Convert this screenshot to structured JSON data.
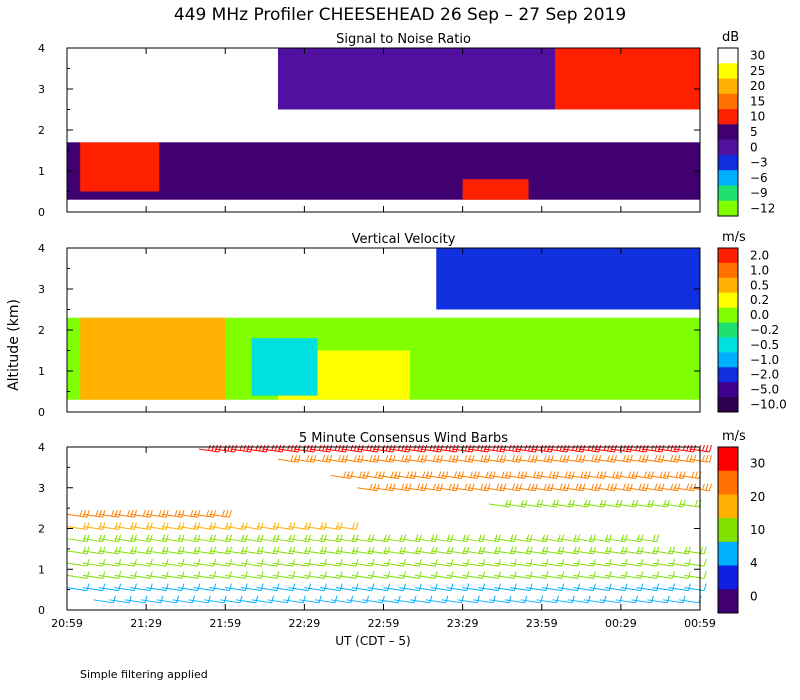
{
  "figure": {
    "title": "449 MHz Profiler CHEESEHEAD 26 Sep – 27 Sep 2019",
    "ylabel": "Altitude (km)",
    "xlabel": "UT  (CDT – 5)",
    "footnote": "Simple filtering applied"
  },
  "chart_data": [
    {
      "type": "heatmap",
      "title": "Signal to Noise Ratio",
      "units": "dB",
      "xlim": [
        0,
        240
      ],
      "ylim": [
        0,
        4
      ],
      "x_tick_labels": [
        "20:59",
        "21:29",
        "21:59",
        "22:29",
        "22:59",
        "23:29",
        "23:59",
        "00:29",
        "00:59"
      ],
      "y_tick_labels": [
        "0",
        "1",
        "2",
        "3",
        "4"
      ],
      "colorbar_labels": [
        "30",
        "25",
        "20",
        "15",
        "10",
        "5",
        "0",
        "−3",
        "−6",
        "−9",
        "−12"
      ],
      "colorbar_colors": [
        "#ffffff",
        "#ffff00",
        "#ffb000",
        "#ff7000",
        "#ff2000",
        "#400070",
        "#5010a0",
        "#1030e0",
        "#00b0ff",
        "#20e070",
        "#80ff00"
      ],
      "regions": [
        {
          "layer": "low-noise",
          "x": [
            0,
            240
          ],
          "y": [
            0.3,
            1.9
          ],
          "color": "#400070"
        },
        {
          "layer": "red-patch",
          "x": [
            5,
            35
          ],
          "y": [
            0.5,
            1.7
          ],
          "color": "#ff2000"
        },
        {
          "layer": "red-patch",
          "x": [
            150,
            175
          ],
          "y": [
            0.3,
            0.8
          ],
          "color": "#ff2000"
        },
        {
          "layer": "bright-layer",
          "x": [
            0,
            240
          ],
          "y": [
            1.7,
            2.4
          ],
          "color": "#ffffff"
        },
        {
          "layer": "upper-clear",
          "x": [
            0,
            80
          ],
          "y": [
            2.2,
            4.0
          ],
          "color": "#ffffff"
        },
        {
          "layer": "upper-noise",
          "x": [
            80,
            240
          ],
          "y": [
            2.5,
            4.0
          ],
          "color": "#5010a0"
        },
        {
          "layer": "upper-red",
          "x": [
            185,
            240
          ],
          "y": [
            2.5,
            4.0
          ],
          "color": "#ff2000"
        }
      ]
    },
    {
      "type": "heatmap",
      "title": "Vertical Velocity",
      "units": "m/s",
      "xlim": [
        0,
        240
      ],
      "ylim": [
        0,
        4
      ],
      "x_tick_labels": [
        "20:59",
        "21:29",
        "21:59",
        "22:29",
        "22:59",
        "23:29",
        "23:59",
        "00:29",
        "00:59"
      ],
      "y_tick_labels": [
        "0",
        "1",
        "2",
        "3",
        "4"
      ],
      "colorbar_labels": [
        "2.0",
        "1.0",
        "0.5",
        "0.2",
        "0.0",
        "−0.2",
        "−0.5",
        "−1.0",
        "−2.0",
        "−5.0",
        "−10.0"
      ],
      "colorbar_colors": [
        "#ff2000",
        "#ff7000",
        "#ffb000",
        "#ffff00",
        "#80ff00",
        "#20e070",
        "#00e0e0",
        "#00b0ff",
        "#1030e0",
        "#400090",
        "#300050"
      ],
      "regions": [
        {
          "layer": "boundary-layer",
          "x": [
            0,
            240
          ],
          "y": [
            0.3,
            2.3
          ],
          "color": "#80ff00"
        },
        {
          "layer": "updraft",
          "x": [
            5,
            60
          ],
          "y": [
            0.3,
            2.3
          ],
          "color": "#ffb000"
        },
        {
          "layer": "updraft",
          "x": [
            80,
            130
          ],
          "y": [
            0.3,
            1.5
          ],
          "color": "#ffff00"
        },
        {
          "layer": "sinking",
          "x": [
            70,
            95
          ],
          "y": [
            0.4,
            1.8
          ],
          "color": "#00e0e0"
        },
        {
          "layer": "upper-downdraft",
          "x": [
            140,
            240
          ],
          "y": [
            2.5,
            4.0
          ],
          "color": "#1030e0"
        }
      ]
    },
    {
      "type": "scatter",
      "title": "5 Minute Consensus Wind Barbs",
      "units": "m/s",
      "xlim": [
        0,
        240
      ],
      "ylim": [
        0,
        4
      ],
      "x_tick_labels": [
        "20:59",
        "21:29",
        "21:59",
        "22:29",
        "22:59",
        "23:29",
        "23:59",
        "00:29",
        "00:59"
      ],
      "y_tick_labels": [
        "0",
        "1",
        "2",
        "3",
        "4"
      ],
      "colorbar_labels": [
        "30",
        "20",
        "10",
        "4",
        "0"
      ],
      "colorbar_colors": [
        "#ff0000",
        "#ff7000",
        "#ffb000",
        "#80e000",
        "#00b0ff",
        "#1020e0",
        "#400070"
      ],
      "barb_rows": [
        {
          "altitude": 0.25,
          "x": [
            10,
            240
          ],
          "speed": 6
        },
        {
          "altitude": 0.55,
          "x": [
            0,
            240
          ],
          "speed": 7
        },
        {
          "altitude": 0.85,
          "x": [
            0,
            240
          ],
          "speed": 8
        },
        {
          "altitude": 1.15,
          "x": [
            0,
            240
          ],
          "speed": 10
        },
        {
          "altitude": 1.45,
          "x": [
            0,
            240
          ],
          "speed": 12
        },
        {
          "altitude": 1.75,
          "x": [
            0,
            225
          ],
          "speed": 13
        },
        {
          "altitude": 2.05,
          "x": [
            0,
            110
          ],
          "speed": 18
        },
        {
          "altitude": 2.35,
          "x": [
            0,
            60
          ],
          "speed": 20
        },
        {
          "altitude": 2.6,
          "x": [
            160,
            240
          ],
          "speed": 14
        },
        {
          "altitude": 3.0,
          "x": [
            110,
            240
          ],
          "speed": 20
        },
        {
          "altitude": 3.3,
          "x": [
            100,
            240
          ],
          "speed": 22
        },
        {
          "altitude": 3.7,
          "x": [
            80,
            240
          ],
          "speed": 25
        },
        {
          "altitude": 3.95,
          "x": [
            50,
            240
          ],
          "speed": 32
        }
      ]
    }
  ]
}
